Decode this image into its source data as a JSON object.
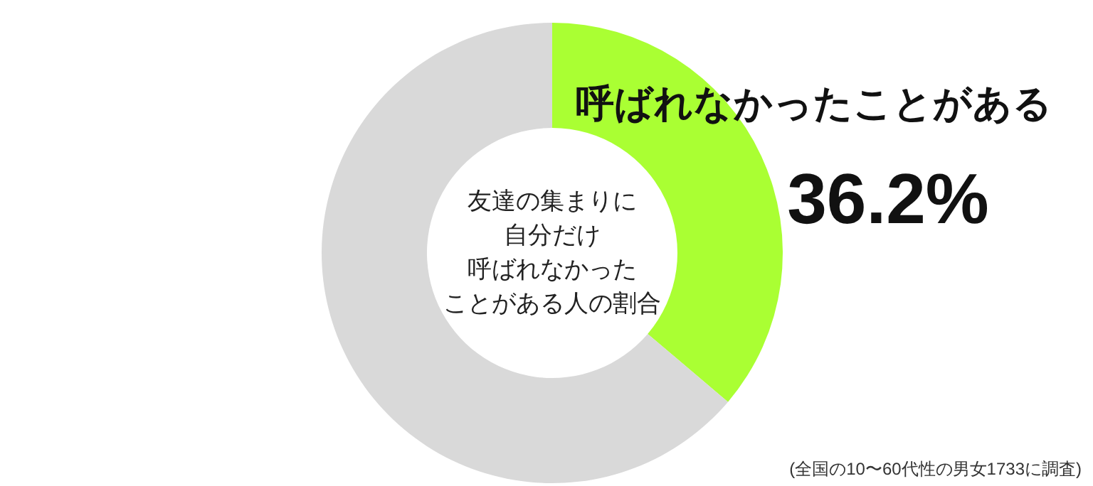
{
  "chart_data": {
    "type": "donut",
    "title": "友達の集まりに自分だけ",
    "subtitle": "呼ばれなかったことがある人の割合",
    "categories": [
      "呼ばれなかったことがある",
      null
    ],
    "values": [
      36.2,
      63.8
    ],
    "colors": [
      "#aaff33",
      "#d9d9d9"
    ],
    "value_labels": [
      "36.2%",
      null
    ],
    "annotations": [
      "(全国の10〜60代性の男女1733に調査)"
    ]
  }
}
